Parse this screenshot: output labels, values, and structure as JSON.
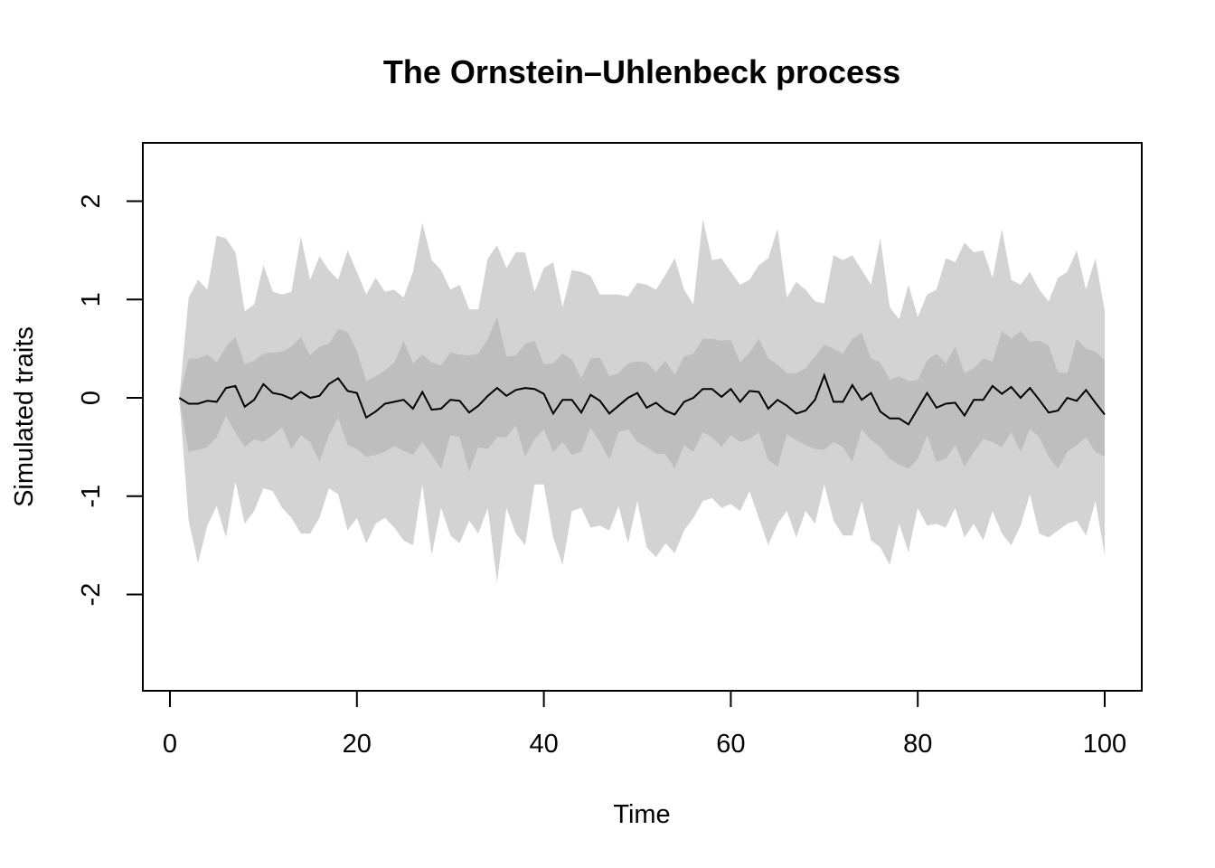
{
  "chart_data": {
    "type": "area",
    "title": "The Ornstein–Uhlenbeck process",
    "xlabel": "Time",
    "ylabel": "Simulated traits",
    "xlim": [
      0,
      100
    ],
    "ylim": [
      -2.5,
      2.5
    ],
    "x_ticks": [
      0,
      20,
      40,
      60,
      80,
      100
    ],
    "y_ticks": [
      -2,
      -1,
      0,
      1,
      2
    ],
    "grid": false,
    "legend": "none",
    "colors": {
      "outer_band": "#d3d3d3",
      "inner_band": "#bebebe",
      "line": "#000000",
      "frame": "#000000"
    },
    "x": [
      1,
      2,
      3,
      4,
      5,
      6,
      7,
      8,
      9,
      10,
      11,
      12,
      13,
      14,
      15,
      16,
      17,
      18,
      19,
      20,
      21,
      22,
      23,
      24,
      25,
      26,
      27,
      28,
      29,
      30,
      31,
      32,
      33,
      34,
      35,
      36,
      37,
      38,
      39,
      40,
      41,
      42,
      43,
      44,
      45,
      46,
      47,
      48,
      49,
      50,
      51,
      52,
      53,
      54,
      55,
      56,
      57,
      58,
      59,
      60,
      61,
      62,
      63,
      64,
      65,
      66,
      67,
      68,
      69,
      70,
      71,
      72,
      73,
      74,
      75,
      76,
      77,
      78,
      79,
      80,
      81,
      82,
      83,
      84,
      85,
      86,
      87,
      88,
      89,
      90,
      91,
      92,
      93,
      94,
      95,
      96,
      97,
      98,
      99,
      100
    ],
    "series": [
      {
        "role": "mean",
        "values": [
          0.0,
          -0.06,
          -0.06,
          -0.03,
          -0.04,
          0.1,
          0.12,
          -0.09,
          -0.02,
          0.14,
          0.05,
          0.03,
          -0.01,
          0.06,
          0.0,
          0.02,
          0.14,
          0.2,
          0.07,
          0.05,
          -0.2,
          -0.14,
          -0.06,
          -0.04,
          -0.02,
          -0.11,
          0.06,
          -0.12,
          -0.11,
          -0.02,
          -0.03,
          -0.15,
          -0.08,
          0.02,
          0.1,
          0.02,
          0.08,
          0.1,
          0.09,
          0.04,
          -0.16,
          -0.02,
          -0.02,
          -0.15,
          0.03,
          -0.03,
          -0.16,
          -0.08,
          0.0,
          0.05,
          -0.1,
          -0.05,
          -0.13,
          -0.17,
          -0.04,
          0.0,
          0.09,
          0.09,
          0.01,
          0.09,
          -0.04,
          0.07,
          0.06,
          -0.11,
          -0.02,
          -0.08,
          -0.16,
          -0.13,
          -0.02,
          0.23,
          -0.04,
          -0.04,
          0.13,
          -0.02,
          0.05,
          -0.14,
          -0.21,
          -0.21,
          -0.27,
          -0.11,
          0.05,
          -0.1,
          -0.06,
          -0.05,
          -0.18,
          -0.02,
          -0.02,
          0.12,
          0.04,
          0.11,
          0.0,
          0.1,
          -0.02,
          -0.15,
          -0.13,
          0.0,
          -0.03,
          0.08,
          -0.05,
          -0.17
        ]
      },
      {
        "role": "inner_upper",
        "values": [
          0.0,
          0.4,
          0.4,
          0.44,
          0.36,
          0.52,
          0.62,
          0.34,
          0.38,
          0.45,
          0.46,
          0.47,
          0.52,
          0.62,
          0.43,
          0.52,
          0.55,
          0.7,
          0.67,
          0.48,
          0.17,
          0.22,
          0.28,
          0.36,
          0.58,
          0.35,
          0.44,
          0.36,
          0.33,
          0.46,
          0.44,
          0.43,
          0.45,
          0.6,
          0.82,
          0.42,
          0.43,
          0.55,
          0.58,
          0.34,
          0.35,
          0.45,
          0.39,
          0.2,
          0.4,
          0.41,
          0.22,
          0.25,
          0.35,
          0.37,
          0.36,
          0.26,
          0.38,
          0.23,
          0.42,
          0.45,
          0.6,
          0.6,
          0.58,
          0.59,
          0.36,
          0.46,
          0.6,
          0.4,
          0.34,
          0.25,
          0.25,
          0.3,
          0.42,
          0.54,
          0.5,
          0.45,
          0.6,
          0.66,
          0.4,
          0.36,
          0.18,
          0.22,
          0.17,
          0.18,
          0.38,
          0.45,
          0.35,
          0.52,
          0.25,
          0.3,
          0.4,
          0.37,
          0.68,
          0.6,
          0.68,
          0.57,
          0.58,
          0.53,
          0.26,
          0.25,
          0.6,
          0.5,
          0.47,
          0.38
        ]
      },
      {
        "role": "inner_lower",
        "values": [
          0.0,
          -0.55,
          -0.53,
          -0.5,
          -0.4,
          -0.18,
          -0.35,
          -0.5,
          -0.42,
          -0.45,
          -0.38,
          -0.3,
          -0.52,
          -0.38,
          -0.45,
          -0.65,
          -0.38,
          -0.2,
          -0.48,
          -0.52,
          -0.6,
          -0.58,
          -0.55,
          -0.49,
          -0.54,
          -0.58,
          -0.45,
          -0.58,
          -0.72,
          -0.38,
          -0.4,
          -0.75,
          -0.5,
          -0.52,
          -0.4,
          -0.4,
          -0.28,
          -0.6,
          -0.42,
          -0.32,
          -0.55,
          -0.45,
          -0.58,
          -0.55,
          -0.3,
          -0.45,
          -0.63,
          -0.35,
          -0.32,
          -0.45,
          -0.5,
          -0.57,
          -0.57,
          -0.72,
          -0.48,
          -0.55,
          -0.35,
          -0.4,
          -0.5,
          -0.38,
          -0.45,
          -0.42,
          -0.35,
          -0.63,
          -0.7,
          -0.37,
          -0.43,
          -0.48,
          -0.52,
          -0.53,
          -0.45,
          -0.5,
          -0.65,
          -0.32,
          -0.43,
          -0.5,
          -0.62,
          -0.68,
          -0.72,
          -0.62,
          -0.38,
          -0.65,
          -0.62,
          -0.48,
          -0.7,
          -0.55,
          -0.42,
          -0.45,
          -0.5,
          -0.35,
          -0.55,
          -0.32,
          -0.4,
          -0.6,
          -0.72,
          -0.55,
          -0.48,
          -0.4,
          -0.55,
          -0.6
        ]
      },
      {
        "role": "outer_upper",
        "values": [
          0.0,
          1.02,
          1.2,
          1.1,
          1.65,
          1.62,
          1.48,
          0.88,
          0.95,
          1.35,
          1.08,
          1.05,
          1.08,
          1.64,
          1.2,
          1.44,
          1.3,
          1.2,
          1.5,
          1.28,
          1.05,
          1.22,
          1.08,
          1.1,
          1.02,
          1.28,
          1.78,
          1.4,
          1.3,
          1.1,
          1.15,
          0.9,
          0.9,
          1.42,
          1.55,
          1.32,
          1.48,
          1.48,
          1.08,
          1.32,
          1.38,
          0.92,
          1.3,
          1.28,
          1.24,
          1.05,
          1.05,
          1.05,
          1.03,
          1.17,
          1.15,
          1.1,
          1.25,
          1.42,
          1.1,
          0.95,
          1.82,
          1.4,
          1.42,
          1.28,
          1.15,
          1.2,
          1.35,
          1.42,
          1.72,
          1.02,
          1.18,
          1.1,
          0.98,
          0.96,
          1.45,
          1.4,
          1.45,
          1.3,
          1.15,
          1.62,
          0.92,
          0.8,
          1.15,
          0.82,
          1.05,
          1.1,
          1.42,
          1.38,
          1.58,
          1.48,
          1.5,
          1.22,
          1.72,
          1.2,
          1.15,
          1.28,
          1.1,
          0.98,
          1.22,
          1.28,
          1.5,
          1.1,
          1.42,
          0.88
        ]
      },
      {
        "role": "outer_lower",
        "values": [
          0.0,
          -1.25,
          -1.68,
          -1.3,
          -1.1,
          -1.42,
          -0.85,
          -1.28,
          -1.15,
          -0.92,
          -0.95,
          -1.12,
          -1.22,
          -1.38,
          -1.38,
          -1.22,
          -0.92,
          -0.98,
          -1.35,
          -1.22,
          -1.48,
          -1.28,
          -1.22,
          -1.32,
          -1.45,
          -1.5,
          -0.88,
          -1.6,
          -1.12,
          -1.4,
          -1.48,
          -1.25,
          -1.38,
          -1.12,
          -1.88,
          -1.12,
          -1.38,
          -1.5,
          -0.88,
          -0.88,
          -1.42,
          -1.7,
          -1.15,
          -1.12,
          -1.32,
          -1.3,
          -1.35,
          -1.1,
          -1.48,
          -1.05,
          -1.52,
          -1.62,
          -1.48,
          -1.58,
          -1.35,
          -1.22,
          -1.05,
          -1.02,
          -1.12,
          -1.08,
          -1.15,
          -0.95,
          -1.22,
          -1.5,
          -1.28,
          -1.15,
          -1.42,
          -1.15,
          -1.28,
          -0.88,
          -1.25,
          -1.4,
          -1.4,
          -1.05,
          -1.45,
          -1.52,
          -1.7,
          -1.28,
          -1.57,
          -1.12,
          -1.3,
          -1.28,
          -1.32,
          -1.12,
          -1.42,
          -1.28,
          -1.45,
          -1.15,
          -1.38,
          -1.5,
          -1.3,
          -0.98,
          -1.38,
          -1.42,
          -1.35,
          -1.28,
          -1.25,
          -1.4,
          -1.05,
          -1.6
        ]
      }
    ]
  }
}
